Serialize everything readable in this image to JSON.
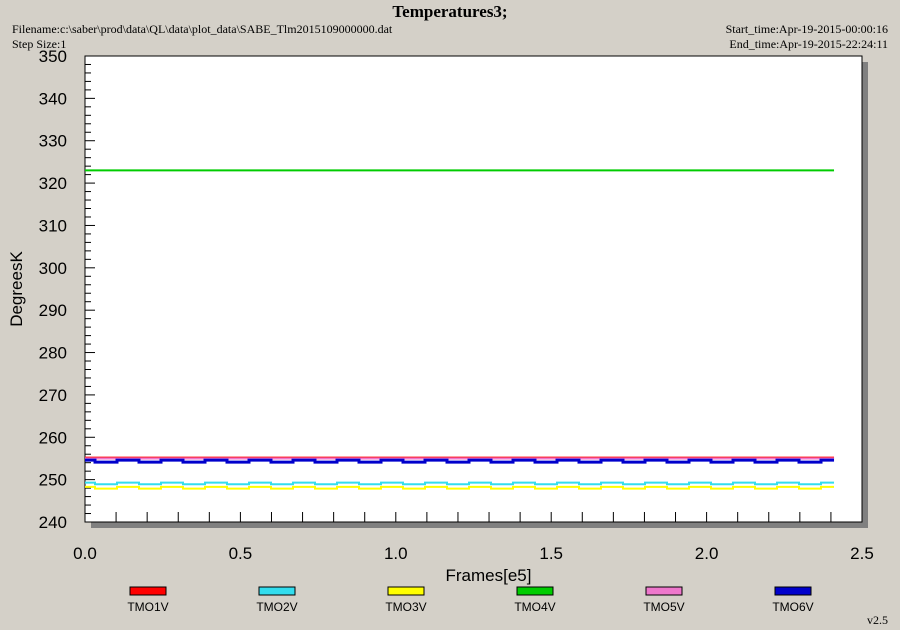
{
  "header": {
    "title": "Temperatures3;",
    "filename": "Filename:c:\\saber\\prod\\data\\QL\\data\\plot_data\\SABE_Tlm2015109000000.dat",
    "step_size": "Step Size:1",
    "start_time": "Start_time:Apr-19-2015-00:00:16",
    "end_time": "End_time:Apr-19-2015-22:24:11",
    "version": "v2.5"
  },
  "colors": {
    "plot_bg": "#ffffff",
    "frame_bg": "#d4d0c8",
    "shadow": "#808080"
  },
  "chart_data": {
    "type": "line",
    "xlabel": "Frames[e5]",
    "ylabel": "DegreesK",
    "xlim": [
      0,
      2.5
    ],
    "ylim": [
      240,
      350
    ],
    "x_ticks": [
      "0.0",
      "0.5",
      "1.0",
      "1.5",
      "2.0",
      "2.5"
    ],
    "y_ticks": [
      "240",
      "250",
      "260",
      "270",
      "280",
      "290",
      "300",
      "310",
      "320",
      "330",
      "340",
      "350"
    ],
    "x_range": [
      0,
      2.41
    ],
    "legend_position": "bottom",
    "series": [
      {
        "name": "TMO1V",
        "color": "#ff0000",
        "values": [
          255.2,
          255.2
        ]
      },
      {
        "name": "TMO2V",
        "color": "#33ddee",
        "values": [
          249.3,
          249.3
        ]
      },
      {
        "name": "TMO3V",
        "color": "#ffff00",
        "values": [
          248.3,
          248.3
        ]
      },
      {
        "name": "TMO4V",
        "color": "#00cc00",
        "values": [
          323.0,
          323.0
        ]
      },
      {
        "name": "TMO5V",
        "color": "#ee77cc",
        "values": [
          255.0,
          255.0
        ]
      },
      {
        "name": "TMO6V",
        "color": "#0000cc",
        "values": [
          254.6,
          254.6
        ]
      }
    ]
  }
}
